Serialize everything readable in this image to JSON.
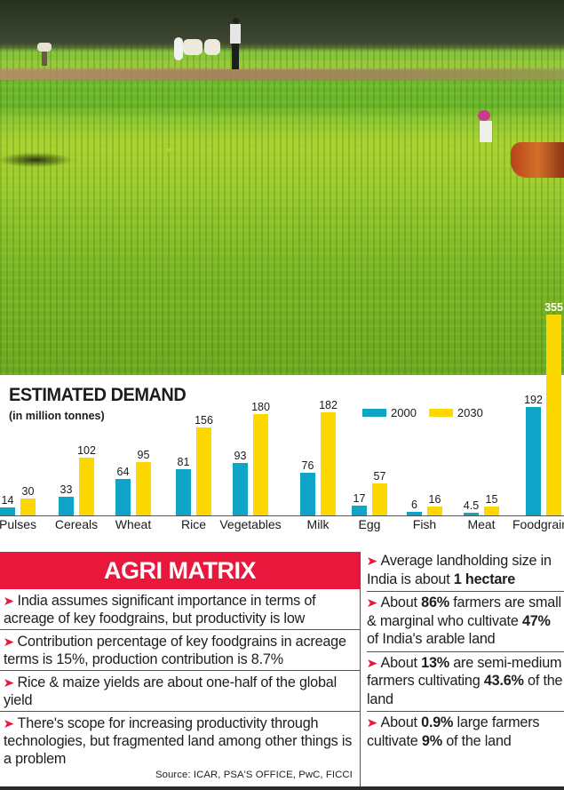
{
  "photo": {
    "description": "Mustard field with farmers working"
  },
  "chart_data": {
    "type": "bar",
    "title": "ESTIMATED DEMAND",
    "subtitle": "(in million tonnes)",
    "xlabel": "",
    "ylabel": "",
    "categories": [
      "Pulses",
      "Cereals",
      "Wheat",
      "Rice",
      "Vegetables",
      "Milk",
      "Egg",
      "Fish",
      "Meat",
      "Foodgrains"
    ],
    "series": [
      {
        "name": "2000",
        "color": "#0ea5c9",
        "values": [
          14,
          33,
          64,
          81,
          93,
          76,
          17,
          6,
          4.5,
          192
        ]
      },
      {
        "name": "2030",
        "color": "#fcd800",
        "values": [
          30,
          102,
          95,
          156,
          180,
          182,
          57,
          16,
          15,
          355
        ]
      }
    ],
    "value_labels": {
      "2000": [
        "14",
        "33",
        "64",
        "81",
        "93",
        "76",
        "17",
        "6",
        "4.5",
        "192"
      ],
      "2030": [
        "30",
        "102",
        "95",
        "156",
        "180",
        "182",
        "57",
        "16",
        "15",
        "355"
      ]
    },
    "legend_position": "top-right",
    "grid": false,
    "ylim": [
      0,
      360
    ]
  },
  "matrix": {
    "title": "AGRI MATRIX",
    "arrow_icon": "➤",
    "items": [
      "India assumes significant importance in terms of acreage of key foodgrains, but productivity is low",
      "Contribution percentage of key foodgrains in acreage terms is 15%, production contribution is 8.7%",
      "Rice & maize yields are about one-half of the global yield",
      "There's scope for increasing productivity through technologies, but fragmented land among other things is a problem"
    ],
    "source": "Source: ICAR, PSA'S OFFICE, PwC, FICCI"
  },
  "facts": [
    {
      "parts": [
        {
          "t": "Average landholding size in India is about "
        },
        {
          "t": "1 hectare",
          "b": true
        }
      ]
    },
    {
      "parts": [
        {
          "t": "About "
        },
        {
          "t": "86%",
          "b": true
        },
        {
          "t": " farmers are small & marginal who cultivate "
        },
        {
          "t": "47%",
          "b": true
        },
        {
          "t": " of India's arable land"
        }
      ]
    },
    {
      "parts": [
        {
          "t": "About "
        },
        {
          "t": "13%",
          "b": true
        },
        {
          "t": " are semi-medium farmers cultivating "
        },
        {
          "t": "43.6%",
          "b": true
        },
        {
          "t": " of the land"
        }
      ]
    },
    {
      "parts": [
        {
          "t": "About "
        },
        {
          "t": "0.9%",
          "b": true
        },
        {
          "t": " large farmers cultivate "
        },
        {
          "t": "9%",
          "b": true
        },
        {
          "t": " of the land"
        }
      ]
    }
  ]
}
